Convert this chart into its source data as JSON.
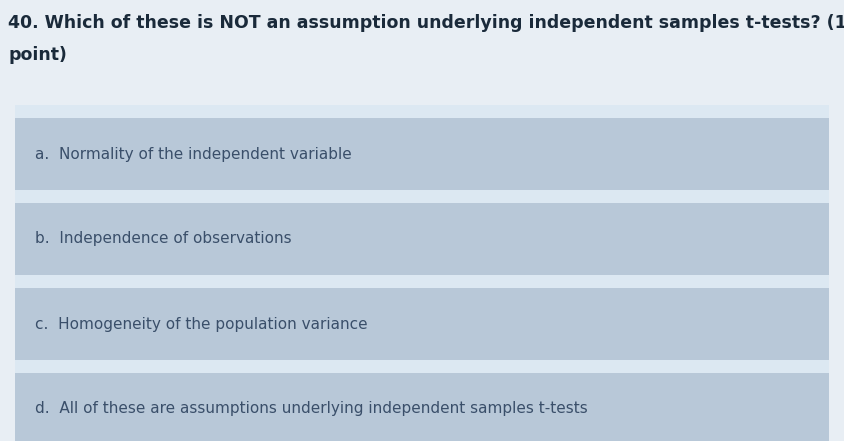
{
  "title_line1": "40. Which of these is NOT an assumption underlying independent samples t-tests? (1",
  "title_line2": "point)",
  "page_bg_color": "#e8eef4",
  "box_area_bg": "#d0dce8",
  "option_box_color": "#b8c8d8",
  "gap_color": "#dce8f2",
  "text_color": "#3a4f6a",
  "title_color": "#1a2a3a",
  "options": [
    "a.  Normality of the independent variable",
    "b.  Independence of observations",
    "c.  Homogeneity of the population variance",
    "d.  All of these are assumptions underlying independent samples t-tests"
  ],
  "fig_width": 8.44,
  "fig_height": 4.41,
  "dpi": 100
}
